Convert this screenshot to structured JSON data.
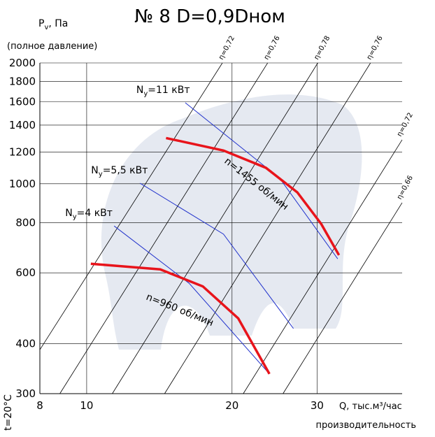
{
  "chart_data": {
    "type": "line",
    "title": "№ 8 D=0,9Dном",
    "y_label": {
      "main": "P",
      "sub": "v",
      "rest": ", Па"
    },
    "y_label_note": "(полное давление)",
    "x_label": "Q, тыс.м³/час",
    "x_label_note": "производительность",
    "temperature": "t=20°C",
    "log_x": true,
    "log_y": true,
    "xlim": [
      8,
      45
    ],
    "ylim": [
      300,
      2000
    ],
    "xticks": [
      8,
      10,
      20,
      30
    ],
    "yticks": [
      300,
      400,
      600,
      800,
      1000,
      1200,
      1400,
      1600,
      1800,
      2000
    ],
    "grid": true,
    "series": [
      {
        "name": "n=1455 об/мин",
        "color": "#e8141b",
        "x": [
          14.6,
          19.2,
          23.5,
          27.3,
          30.6,
          33.3
        ],
        "values": [
          1300,
          1210,
          1096,
          952,
          794,
          664
        ]
      },
      {
        "name": "n=960 об/мин",
        "color": "#e8141b",
        "x": [
          10.2,
          14.2,
          17.4,
          20.6,
          23.9
        ],
        "values": [
          632,
          612,
          555,
          462,
          336
        ]
      }
    ],
    "power_curves": [
      {
        "label": {
          "main": "N",
          "sub": "y",
          "rest": "=11 кВт"
        },
        "color": "#2233cc",
        "x": [
          16.0,
          25.1,
          33.1
        ],
        "values": [
          1592,
          1032,
          650
        ]
      },
      {
        "label": {
          "main": "N",
          "sub": "y",
          "rest": "=5,5 кВт"
        },
        "color": "#2233cc",
        "x": [
          12.9,
          19.2,
          26.8
        ],
        "values": [
          1003,
          749,
          436
        ]
      },
      {
        "label": {
          "main": "N",
          "sub": "y",
          "rest": "=4 кВт"
        },
        "color": "#2233cc",
        "x": [
          11.4,
          16.3,
          23.9
        ],
        "values": [
          785,
          565,
          336
        ]
      }
    ],
    "efficiency_lines": [
      {
        "name": "η=0,72",
        "x": [
          8,
          19.1
        ],
        "values": [
          386,
          2000
        ]
      },
      {
        "name": "η=0,76",
        "x": [
          8.8,
          23.7
        ],
        "values": [
          300,
          2000
        ]
      },
      {
        "name": "η=0,78",
        "x": [
          11.3,
          30.1
        ],
        "values": [
          300,
          2000
        ]
      },
      {
        "name": "η=0,76",
        "x": [
          14.5,
          38.7
        ],
        "values": [
          300,
          2000
        ]
      },
      {
        "name": "η=0,72",
        "x": [
          21.1,
          45
        ],
        "values": [
          300,
          1287
        ]
      },
      {
        "name": "η=0,66",
        "x": [
          25.5,
          45
        ],
        "values": [
          300,
          897
        ]
      }
    ]
  }
}
